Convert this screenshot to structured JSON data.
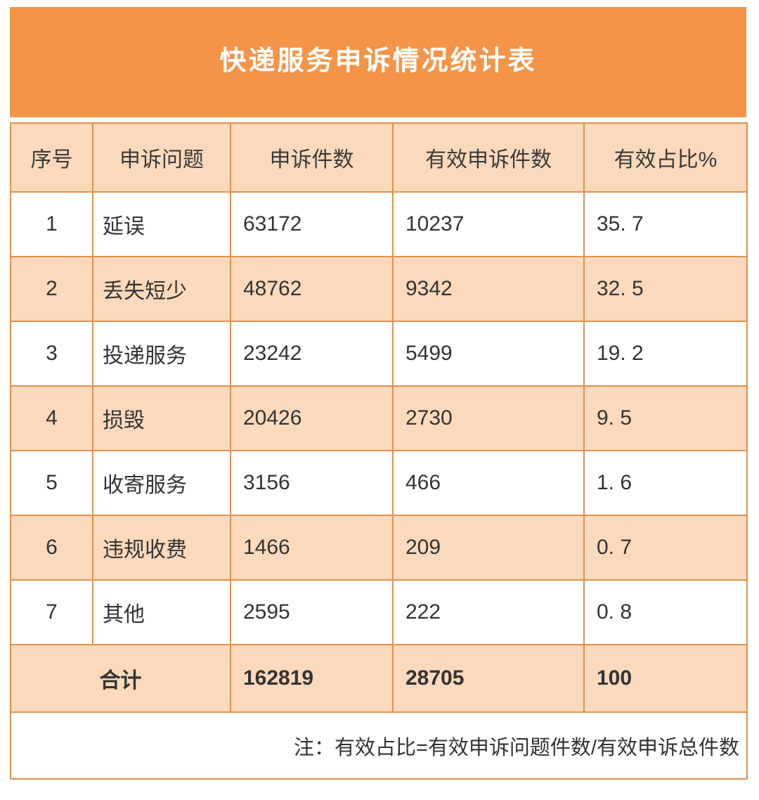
{
  "banner": {
    "title": "快递服务申诉情况统计表"
  },
  "colors": {
    "banner_bg": "#F39448",
    "row_highlight_bg": "#FAD9BC",
    "row_plain_bg": "#FFFFFF",
    "grid_border": "#E0914C",
    "title_text": "#FFFFFF",
    "body_text": "#333333"
  },
  "table": {
    "columns": [
      "序号",
      "申诉问题",
      "申诉件数",
      "有效申诉件数",
      "有效占比%"
    ],
    "rows": [
      {
        "no": "1",
        "issue": "延误",
        "count": "63172",
        "valid": "10237",
        "pct": "35. 7"
      },
      {
        "no": "2",
        "issue": "丢失短少",
        "count": "48762",
        "valid": "9342",
        "pct": "32. 5"
      },
      {
        "no": "3",
        "issue": "投递服务",
        "count": "23242",
        "valid": "5499",
        "pct": "19. 2"
      },
      {
        "no": "4",
        "issue": "损毁",
        "count": "20426",
        "valid": "2730",
        "pct": "9. 5"
      },
      {
        "no": "5",
        "issue": "收寄服务",
        "count": "3156",
        "valid": "466",
        "pct": "1. 6"
      },
      {
        "no": "6",
        "issue": "违规收费",
        "count": "1466",
        "valid": "209",
        "pct": "0. 7"
      },
      {
        "no": "7",
        "issue": "其他",
        "count": "2595",
        "valid": "222",
        "pct": "0. 8"
      }
    ],
    "total": {
      "label": "合计",
      "count": "162819",
      "valid": "28705",
      "pct": "100"
    },
    "note": "注：有效占比=有效申诉问题件数/有效申诉总件数"
  },
  "chart_data": {
    "type": "table",
    "title": "快递服务申诉情况统计表",
    "columns": [
      "序号",
      "申诉问题",
      "申诉件数",
      "有效申诉件数",
      "有效占比%"
    ],
    "rows": [
      [
        1,
        "延误",
        63172,
        10237,
        35.7
      ],
      [
        2,
        "丢失短少",
        48762,
        9342,
        32.5
      ],
      [
        3,
        "投递服务",
        23242,
        5499,
        19.2
      ],
      [
        4,
        "损毁",
        20426,
        2730,
        9.5
      ],
      [
        5,
        "收寄服务",
        3156,
        466,
        1.6
      ],
      [
        6,
        "违规收费",
        1466,
        209,
        0.7
      ],
      [
        7,
        "其他",
        2595,
        222,
        0.8
      ]
    ],
    "total_row": [
      "合计",
      162819,
      28705,
      100
    ],
    "note": "注：有效占比=有效申诉问题件数/有效申诉总件数"
  }
}
